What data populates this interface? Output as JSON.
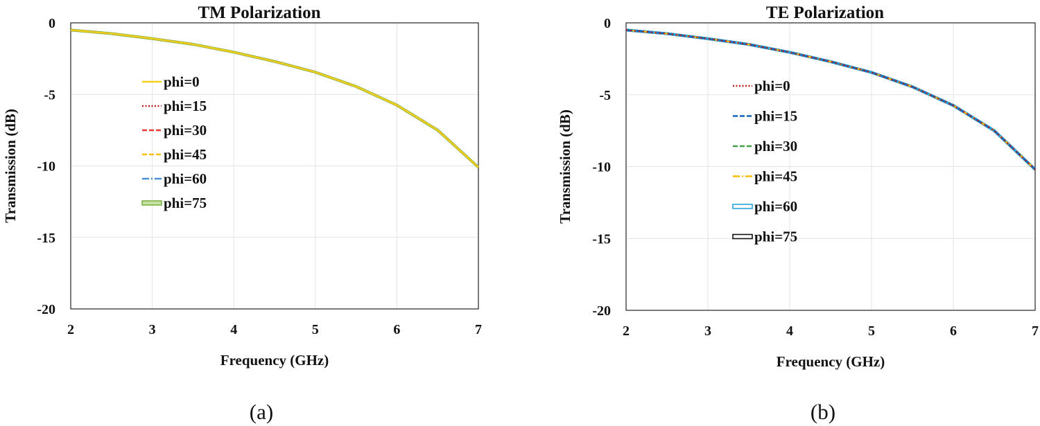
{
  "figure": {
    "subcaptions": [
      "(a)",
      "(b)"
    ]
  },
  "chart_data": [
    {
      "type": "line",
      "title": "TM Polarization",
      "xlabel": "Frequency (GHz)",
      "ylabel": "Transmission (dB)",
      "xlim": [
        2,
        7
      ],
      "ylim": [
        -20,
        0
      ],
      "xticks": [
        2,
        3,
        4,
        5,
        6,
        7
      ],
      "yticks": [
        0,
        -5,
        -10,
        -15,
        -20
      ],
      "ytick_labels": [
        "0",
        "-5",
        "-10",
        "-15",
        "-20"
      ],
      "grid": true,
      "legend_position": "upper-left",
      "x": [
        2,
        2.5,
        3,
        3.5,
        4,
        4.5,
        5,
        5.5,
        6,
        6.5,
        7
      ],
      "series": [
        {
          "name": "phi=0",
          "style": "solid",
          "color": "#f2d21b",
          "values": [
            -0.5,
            -0.75,
            -1.1,
            -1.5,
            -2.05,
            -2.7,
            -3.45,
            -4.45,
            -5.75,
            -7.5,
            -10.1
          ]
        },
        {
          "name": "phi=15",
          "style": "dotted",
          "color": "#b71c1c",
          "values": [
            -0.5,
            -0.75,
            -1.1,
            -1.5,
            -2.05,
            -2.7,
            -3.45,
            -4.45,
            -5.75,
            -7.5,
            -10.1
          ]
        },
        {
          "name": "phi=30",
          "style": "dashed",
          "color": "#e53935",
          "values": [
            -0.5,
            -0.75,
            -1.1,
            -1.5,
            -2.05,
            -2.7,
            -3.45,
            -4.45,
            -5.75,
            -7.5,
            -10.1
          ]
        },
        {
          "name": "phi=45",
          "style": "dashed",
          "color": "#fbbc05",
          "values": [
            -0.5,
            -0.75,
            -1.1,
            -1.5,
            -2.05,
            -2.7,
            -3.45,
            -4.45,
            -5.75,
            -7.5,
            -10.1
          ]
        },
        {
          "name": "phi=60",
          "style": "dashdot",
          "color": "#4a90d9",
          "values": [
            -0.5,
            -0.75,
            -1.1,
            -1.5,
            -2.05,
            -2.7,
            -3.45,
            -4.45,
            -5.75,
            -7.5,
            -10.1
          ]
        },
        {
          "name": "phi=75",
          "style": "outlined",
          "color": "#7cb342",
          "values": [
            -0.5,
            -0.75,
            -1.1,
            -1.5,
            -2.05,
            -2.7,
            -3.45,
            -4.45,
            -5.75,
            -7.5,
            -10.1
          ]
        }
      ]
    },
    {
      "type": "line",
      "title": "TE Polarization",
      "xlabel": "Frequency (GHz)",
      "ylabel": "Transmission (dB)",
      "xlim": [
        2,
        7
      ],
      "ylim": [
        -20,
        0
      ],
      "xticks": [
        2,
        3,
        4,
        5,
        6,
        7
      ],
      "yticks": [
        0,
        -5,
        -10,
        -15,
        -20
      ],
      "ytick_labels": [
        "0",
        "-5",
        "-10",
        "-15",
        "-20"
      ],
      "grid": true,
      "legend_position": "upper-left",
      "x": [
        2,
        2.5,
        3,
        3.5,
        4,
        4.5,
        5,
        5.5,
        6,
        6.5,
        7
      ],
      "series": [
        {
          "name": "phi=0",
          "style": "dotted",
          "color": "#b71c1c",
          "values": [
            -0.5,
            -0.75,
            -1.1,
            -1.5,
            -2.05,
            -2.7,
            -3.45,
            -4.45,
            -5.75,
            -7.5,
            -10.2
          ]
        },
        {
          "name": "phi=15",
          "style": "dashed",
          "color": "#1565c0",
          "values": [
            -0.5,
            -0.75,
            -1.1,
            -1.5,
            -2.05,
            -2.7,
            -3.45,
            -4.45,
            -5.75,
            -7.5,
            -10.2
          ]
        },
        {
          "name": "phi=30",
          "style": "dashed",
          "color": "#43a047",
          "values": [
            -0.5,
            -0.75,
            -1.1,
            -1.5,
            -2.05,
            -2.7,
            -3.45,
            -4.45,
            -5.75,
            -7.5,
            -10.2
          ]
        },
        {
          "name": "phi=45",
          "style": "dashdot",
          "color": "#fbbc05",
          "values": [
            -0.5,
            -0.75,
            -1.1,
            -1.5,
            -2.05,
            -2.7,
            -3.45,
            -4.45,
            -5.75,
            -7.5,
            -10.2
          ]
        },
        {
          "name": "phi=60",
          "style": "outlined",
          "color": "#29a3e0",
          "values": [
            -0.5,
            -0.75,
            -1.1,
            -1.5,
            -2.05,
            -2.7,
            -3.45,
            -4.45,
            -5.75,
            -7.5,
            -10.2
          ]
        },
        {
          "name": "phi=75",
          "style": "outlined",
          "color": "#111111",
          "values": [
            -0.5,
            -0.75,
            -1.1,
            -1.5,
            -2.05,
            -2.7,
            -3.45,
            -4.45,
            -5.75,
            -7.5,
            -10.2
          ]
        }
      ]
    }
  ]
}
